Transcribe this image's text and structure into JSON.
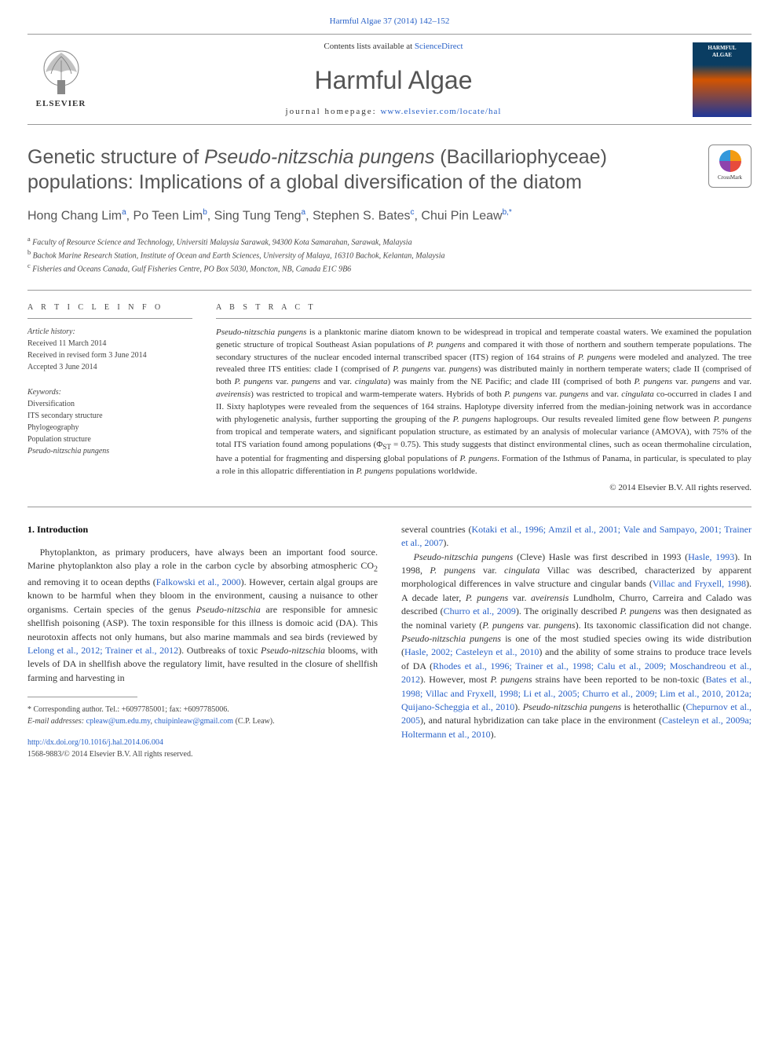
{
  "citation": "Harmful Algae 37 (2014) 142–152",
  "masthead": {
    "contents_prefix": "Contents lists available at ",
    "contents_link": "ScienceDirect",
    "journal": "Harmful Algae",
    "homepage_prefix": "journal homepage: ",
    "homepage_url": "www.elsevier.com/locate/hal",
    "publisher": "ELSEVIER",
    "cover_top": "HARMFUL",
    "cover_bottom": "ALGAE"
  },
  "title_html": "Genetic structure of <em>Pseudo-nitzschia pungens</em> (Bacillariophyceae) populations: Implications of a global diversification of the diatom",
  "crossmark": "CrossMark",
  "authors_html": "Hong Chang Lim<sup>a</sup>, Po Teen Lim<sup>b</sup>, Sing Tung Teng<sup>a</sup>, Stephen S. Bates<sup>c</sup>, Chui Pin Leaw<sup>b,*</sup>",
  "affiliations": [
    "a Faculty of Resource Science and Technology, Universiti Malaysia Sarawak, 94300 Kota Samarahan, Sarawak, Malaysia",
    "b Bachok Marine Research Station, Institute of Ocean and Earth Sciences, University of Malaya, 16310 Bachok, Kelantan, Malaysia",
    "c Fisheries and Oceans Canada, Gulf Fisheries Centre, PO Box 5030, Moncton, NB, Canada E1C 9B6"
  ],
  "info": {
    "header": "A R T I C L E   I N F O",
    "history_label": "Article history:",
    "history": [
      "Received 11 March 2014",
      "Received in revised form 3 June 2014",
      "Accepted 3 June 2014"
    ],
    "keywords_label": "Keywords:",
    "keywords": [
      "Diversification",
      "ITS secondary structure",
      "Phylogeography",
      "Population structure",
      "Pseudo-nitzschia pungens"
    ]
  },
  "abstract": {
    "header": "A B S T R A C T",
    "text_html": "<em>Pseudo-nitzschia pungens</em> is a planktonic marine diatom known to be widespread in tropical and temperate coastal waters. We examined the population genetic structure of tropical Southeast Asian populations of <em>P. pungens</em> and compared it with those of northern and southern temperate populations. The secondary structures of the nuclear encoded internal transcribed spacer (ITS) region of 164 strains of <em>P. pungens</em> were modeled and analyzed. The tree revealed three ITS entities: clade I (comprised of <em>P. pungens</em> var. <em>pungens</em>) was distributed mainly in northern temperate waters; clade II (comprised of both <em>P. pungens</em> var. <em>pungens</em> and var. <em>cingulata</em>) was mainly from the NE Pacific; and clade III (comprised of both <em>P. pungens</em> var. <em>pungens</em> and var. <em>aveirensis</em>) was restricted to tropical and warm-temperate waters. Hybrids of both <em>P. pungens</em> var. <em>pungens</em> and var. <em>cingulata</em> co-occurred in clades I and II. Sixty haplotypes were revealed from the sequences of 164 strains. Haplotype diversity inferred from the median-joining network was in accordance with phylogenetic analysis, further supporting the grouping of the <em>P. pungens</em> haplogroups. Our results revealed limited gene flow between <em>P. pungens</em> from tropical and temperate waters, and significant population structure, as estimated by an analysis of molecular variance (AMOVA), with 75% of the total ITS variation found among populations (Φ<sub>ST</sub> = 0.75). This study suggests that distinct environmental clines, such as ocean thermohaline circulation, have a potential for fragmenting and dispersing global populations of <em>P. pungens</em>. Formation of the Isthmus of Panama, in particular, is speculated to play a role in this allopatric differentiation in <em>P. pungens</em> populations worldwide.",
    "copyright": "© 2014 Elsevier B.V. All rights reserved."
  },
  "body": {
    "section_title": "1. Introduction",
    "col1_html": "Phytoplankton, as primary producers, have always been an important food source. Marine phytoplankton also play a role in the carbon cycle by absorbing atmospheric CO<sub>2</sub> and removing it to ocean depths (<a>Falkowski et al., 2000</a>). However, certain algal groups are known to be harmful when they bloom in the environment, causing a nuisance to other organisms. Certain species of the genus <em>Pseudo-nitzschia</em> are responsible for amnesic shellfish poisoning (ASP). The toxin responsible for this illness is domoic acid (DA). This neurotoxin affects not only humans, but also marine mammals and sea birds (reviewed by <a>Lelong et al., 2012; Trainer et al., 2012</a>). Outbreaks of toxic <em>Pseudo-nitzschia</em> blooms, with levels of DA in shellfish above the regulatory limit, have resulted in the closure of shellfish farming and harvesting in",
    "col2a_html": "several countries (<a>Kotaki et al., 1996; Amzil et al., 2001; Vale and Sampayo, 2001; Trainer et al., 2007</a>).",
    "col2b_html": "<em>Pseudo-nitzschia pungens</em> (Cleve) Hasle was first described in 1993 (<a>Hasle, 1993</a>). In 1998, <em>P. pungens</em> var. <em>cingulata</em> Villac was described, characterized by apparent morphological differences in valve structure and cingular bands (<a>Villac and Fryxell, 1998</a>). A decade later, <em>P. pungens</em> var. <em>aveirensis</em> Lundholm, Churro, Carreira and Calado was described (<a>Churro et al., 2009</a>). The originally described <em>P. pungens</em> was then designated as the nominal variety (<em>P. pungens</em> var. <em>pungens</em>). Its taxonomic classification did not change. <em>Pseudo-nitzschia pungens</em> is one of the most studied species owing its wide distribution (<a>Hasle, 2002; Casteleyn et al., 2010</a>) and the ability of some strains to produce trace levels of DA (<a>Rhodes et al., 1996; Trainer et al., 1998; Calu et al., 2009; Moschandreou et al., 2012</a>). However, most <em>P. pungens</em> strains have been reported to be non-toxic (<a>Bates et al., 1998; Villac and Fryxell, 1998; Li et al., 2005; Churro et al., 2009; Lim et al., 2010, 2012a; Quijano-Scheggia et al., 2010</a>). <em>Pseudo-nitzschia pungens</em> is heterothallic (<a>Chepurnov et al., 2005</a>), and natural hybridization can take place in the environment (<a>Casteleyn et al., 2009a; Holtermann et al., 2010</a>)."
  },
  "footnote": {
    "corr": "* Corresponding author. Tel.: +6097785001; fax: +6097785006.",
    "email_label": "E-mail addresses: ",
    "email1": "cpleaw@um.edu.my",
    "email2": "chuipinleaw@gmail.com",
    "email_name": " (C.P. Leaw)."
  },
  "doi": {
    "url": "http://dx.doi.org/10.1016/j.hal.2014.06.004",
    "line2": "1568-9883/© 2014 Elsevier B.V. All rights reserved."
  },
  "colors": {
    "link": "#2962c8",
    "text": "#333333",
    "heading": "#555555",
    "rule": "#999999"
  }
}
